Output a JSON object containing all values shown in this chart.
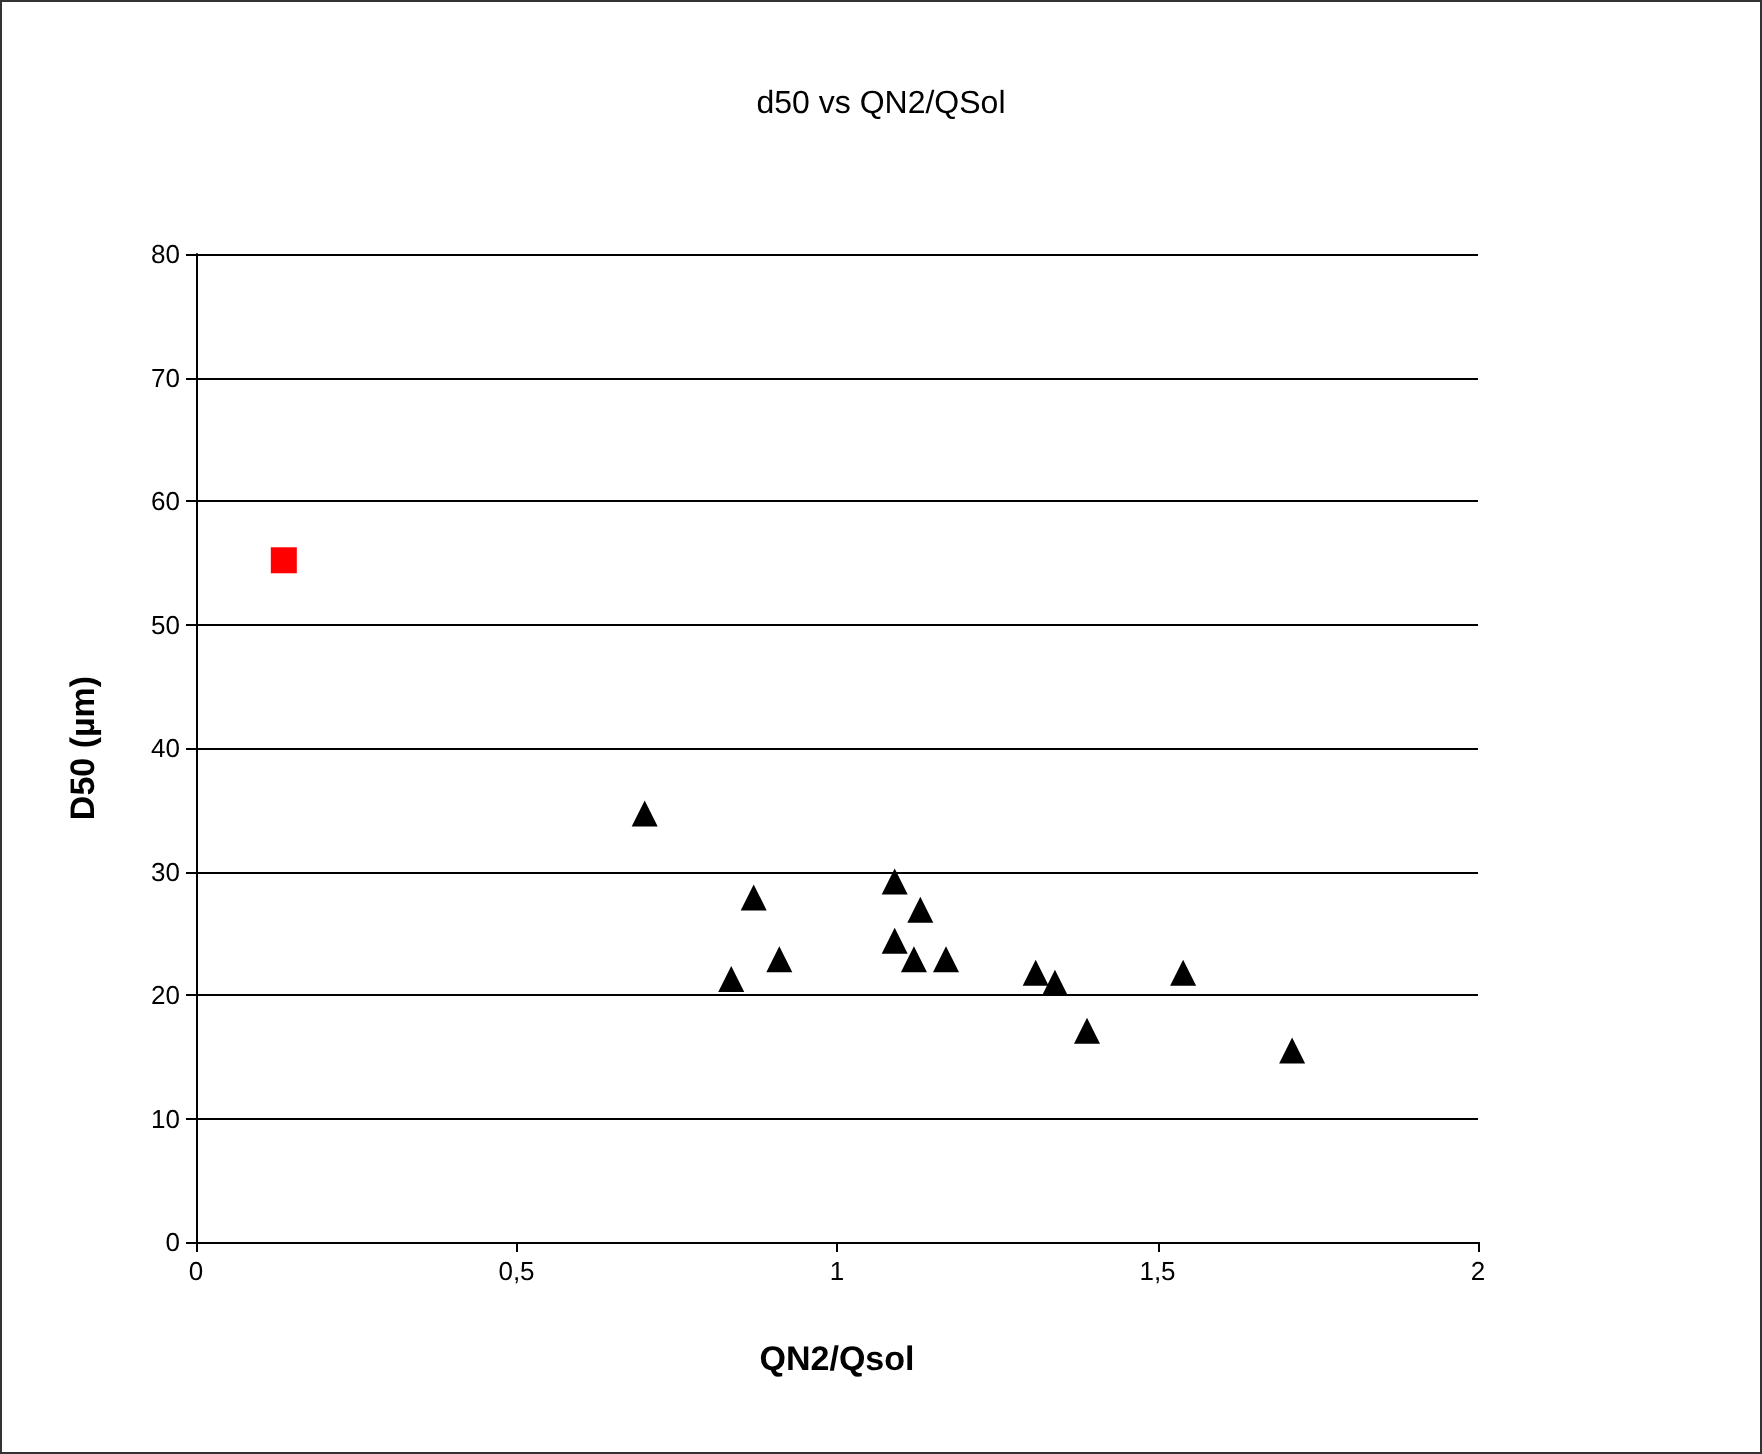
{
  "chart_data": {
    "type": "scatter",
    "title": "d50 vs QN2/QSol",
    "xlabel": "QN2/Qsol",
    "ylabel": "D50 (µm)",
    "series": [
      {
        "color": "#000000",
        "marker": "triangle",
        "x": [
          0.7,
          0.835,
          0.87,
          0.91,
          1.09,
          1.09,
          1.13,
          1.12,
          1.17,
          1.31,
          1.34,
          1.39,
          1.54,
          1.71
        ],
        "values": [
          34.7,
          21.3,
          27.9,
          22.9,
          24.4,
          29.2,
          26.9,
          22.9,
          22.9,
          21.8,
          21.0,
          17.1,
          21.8,
          15.5
        ]
      },
      {
        "color": "#ff0000",
        "marker": "square",
        "x": [
          0.137
        ],
        "values": [
          55.2
        ]
      }
    ],
    "xlim": [
      0,
      2
    ],
    "xticks": [
      0,
      {
        "value": 0.5,
        "label": "0,5"
      },
      1,
      {
        "value": 1.5,
        "label": "1,5"
      },
      2
    ],
    "ylim": [
      0,
      80
    ],
    "yticks": [
      0,
      10,
      20,
      30,
      40,
      50,
      60,
      70,
      80
    ],
    "grid": "y"
  }
}
